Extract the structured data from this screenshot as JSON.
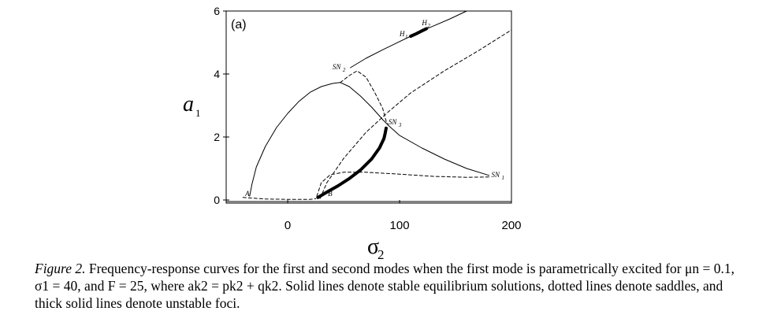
{
  "chart_data": {
    "type": "line",
    "panel_label": "(a)",
    "xlabel": "σ",
    "xlabel_sub": "2",
    "ylabel": "a",
    "ylabel_sub": "1",
    "xlim": [
      -55,
      200
    ],
    "ylim": [
      -0.1,
      6
    ],
    "xticks": [
      0,
      100,
      200
    ],
    "yticks": [
      0,
      2,
      4,
      6
    ],
    "grid": false,
    "series": [
      {
        "style": "solid",
        "points": [
          [
            -34,
            0.12
          ],
          [
            -32,
            0.5
          ],
          [
            -28,
            1.05
          ],
          [
            -20,
            1.7
          ],
          [
            -10,
            2.3
          ],
          [
            0,
            2.75
          ],
          [
            10,
            3.13
          ],
          [
            20,
            3.42
          ],
          [
            30,
            3.6
          ],
          [
            40,
            3.7
          ],
          [
            47,
            3.73
          ],
          [
            55,
            3.6
          ],
          [
            65,
            3.3
          ],
          [
            75,
            2.95
          ],
          [
            85,
            2.55
          ],
          [
            90,
            2.37
          ],
          [
            100,
            2.05
          ],
          [
            120,
            1.65
          ],
          [
            140,
            1.3
          ],
          [
            160,
            1.0
          ],
          [
            180,
            0.78
          ]
        ]
      },
      {
        "style": "dashed",
        "points": [
          [
            47,
            3.73
          ],
          [
            55,
            3.95
          ],
          [
            62,
            4.1
          ],
          [
            70,
            3.9
          ],
          [
            78,
            3.4
          ],
          [
            85,
            2.9
          ],
          [
            88,
            2.5
          ],
          [
            90,
            2.37
          ]
        ]
      },
      {
        "style": "solid",
        "points": [
          [
            56,
            4.2
          ],
          [
            70,
            4.5
          ],
          [
            85,
            4.77
          ],
          [
            100,
            5.03
          ],
          [
            110,
            5.2
          ],
          [
            120,
            5.37
          ],
          [
            130,
            5.52
          ],
          [
            145,
            5.75
          ],
          [
            160,
            6.0
          ],
          [
            200,
            6.0
          ]
        ]
      },
      {
        "style": "thick",
        "points": [
          [
            110,
            5.2
          ],
          [
            115,
            5.28
          ],
          [
            120,
            5.37
          ],
          [
            124,
            5.44
          ]
        ]
      },
      {
        "style": "dashed",
        "points": [
          [
            -40,
            0.08
          ],
          [
            -20,
            0.03
          ],
          [
            0,
            0.02
          ],
          [
            20,
            0.02
          ],
          [
            25,
            0.04
          ]
        ]
      },
      {
        "style": "thick",
        "points": [
          [
            27,
            0.08
          ],
          [
            35,
            0.25
          ],
          [
            45,
            0.45
          ],
          [
            55,
            0.68
          ],
          [
            65,
            0.95
          ],
          [
            75,
            1.3
          ],
          [
            82,
            1.65
          ],
          [
            86,
            1.95
          ],
          [
            87,
            2.1
          ],
          [
            88,
            2.28
          ]
        ]
      },
      {
        "style": "dashed",
        "points": [
          [
            29,
            0.05
          ],
          [
            35,
            0.55
          ],
          [
            50,
            1.32
          ],
          [
            70,
            2.15
          ],
          [
            90,
            2.8
          ],
          [
            110,
            3.4
          ],
          [
            140,
            4.1
          ],
          [
            170,
            4.73
          ],
          [
            200,
            5.4
          ]
        ]
      },
      {
        "style": "dashed",
        "points": [
          [
            26,
            0.12
          ],
          [
            30,
            0.55
          ],
          [
            38,
            0.8
          ],
          [
            50,
            0.88
          ],
          [
            70,
            0.88
          ],
          [
            100,
            0.82
          ],
          [
            130,
            0.75
          ],
          [
            160,
            0.72
          ],
          [
            180,
            0.73
          ]
        ]
      },
      {
        "style": "solid",
        "points": [
          [
            -55,
            -0.05
          ],
          [
            200,
            -0.05
          ]
        ]
      }
    ],
    "annotations": [
      {
        "text": "A",
        "x": -38,
        "y": 0.12
      },
      {
        "text": "B",
        "x": 36,
        "y": 0.12
      },
      {
        "text": "SN",
        "sub": "1",
        "x": 182,
        "y": 0.73
      },
      {
        "text": "SN",
        "sub": "2",
        "x": 40,
        "y": 4.15
      },
      {
        "text": "SN",
        "sub": "3",
        "x": 90,
        "y": 2.4
      },
      {
        "text": "H",
        "sub": "1",
        "x": 100,
        "y": 5.2
      },
      {
        "text": "H",
        "sub": "2",
        "x": 120,
        "y": 5.55
      }
    ]
  },
  "caption": {
    "lead": "Figure 2.",
    "text": "Frequency-response curves for the first and second modes when the first mode is parametrically excited for μn = 0.1, σ1 = 40, and F = 25, where ak2 = pk2 + qk2. Solid lines denote stable equilibrium solutions, dotted lines denote saddles, and thick solid lines denote unstable foci."
  }
}
